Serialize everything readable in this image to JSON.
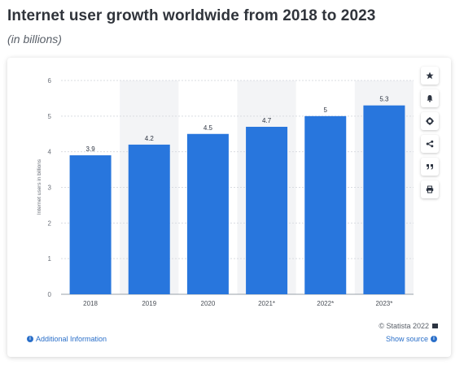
{
  "header": {
    "title": "Internet user growth worldwide from 2018 to 2023",
    "subtitle": "(in billions)"
  },
  "chart_data": {
    "type": "bar",
    "categories": [
      "2018",
      "2019",
      "2020",
      "2021*",
      "2022*",
      "2023*"
    ],
    "values": [
      3.9,
      4.2,
      4.5,
      4.7,
      5,
      5.3
    ],
    "value_labels": [
      "3.9",
      "4.2",
      "4.5",
      "4.7",
      "5",
      "5.3"
    ],
    "ylabel": "Internet users in billions",
    "xlabel": "",
    "ylim": [
      0,
      6
    ],
    "yticks": [
      "0",
      "1",
      "2",
      "3",
      "4",
      "5",
      "6"
    ],
    "grid": true,
    "bar_color": "#2876dd",
    "shaded_column_bg": "#f3f4f6"
  },
  "toolbar": {
    "items": [
      {
        "icon": "star-icon",
        "name": "favorite-button"
      },
      {
        "icon": "bell-icon",
        "name": "notification-button"
      },
      {
        "icon": "gear-icon",
        "name": "settings-button"
      },
      {
        "icon": "share-icon",
        "name": "share-button"
      },
      {
        "icon": "quote-icon",
        "name": "cite-button"
      },
      {
        "icon": "print-icon",
        "name": "print-button"
      }
    ]
  },
  "footer": {
    "credit": "© Statista 2022",
    "additional_info": "Additional Information",
    "show_source": "Show source"
  }
}
